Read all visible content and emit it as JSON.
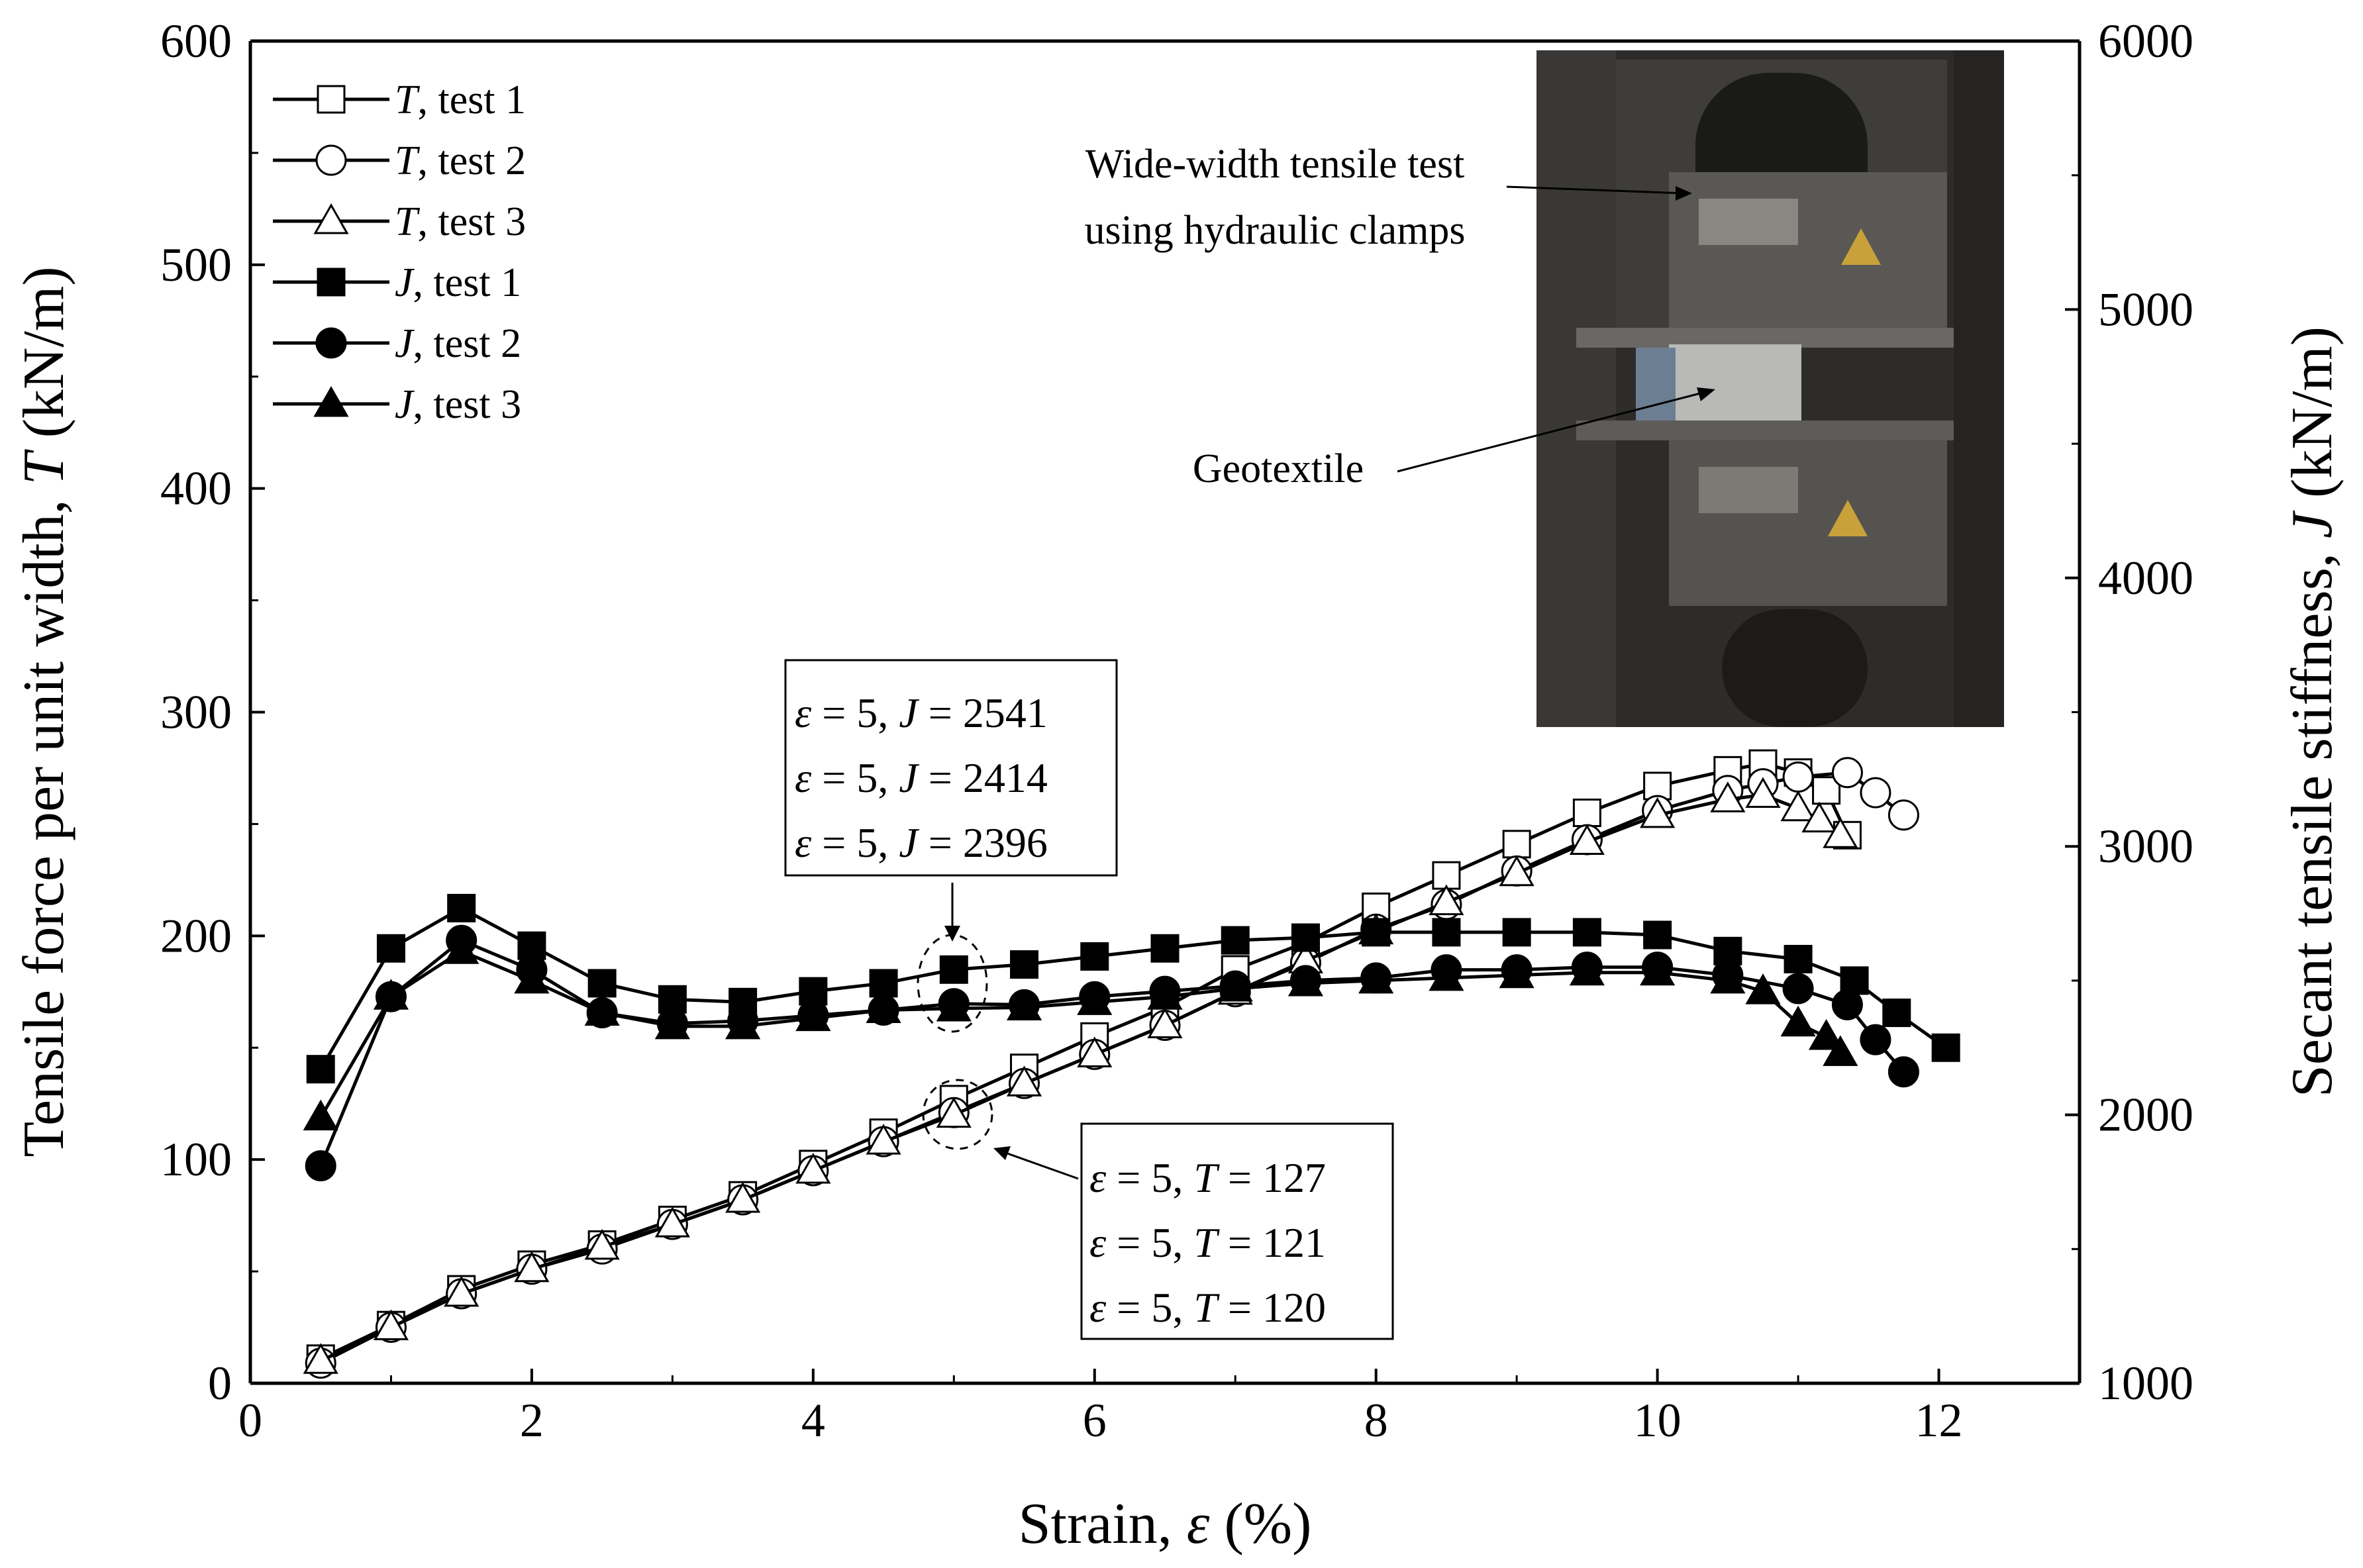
{
  "chart_data": {
    "type": "line",
    "xlabel": "Strain, ε (%)",
    "ylabel_left": "Tensile force per unit width, T (kN/m)",
    "ylabel_right": "Secant tensile stiffness, J (kN/m)",
    "xlim": [
      0,
      13
    ],
    "ylim_left": [
      0,
      600
    ],
    "ylim_right": [
      1000,
      6000
    ],
    "x_ticks": [
      0,
      2,
      4,
      6,
      8,
      10,
      12
    ],
    "y_left_ticks": [
      0,
      100,
      200,
      300,
      400,
      500,
      600
    ],
    "y_right_ticks": [
      1000,
      2000,
      3000,
      4000,
      5000,
      6000
    ],
    "grid": false,
    "legend_position": "top-left",
    "series": [
      {
        "name": "T, test 1",
        "legend_symbol": "T",
        "legend_rest": ",  test 1",
        "axis": "left",
        "marker": "square",
        "filled": false,
        "points": [
          [
            0.5,
            11
          ],
          [
            1,
            26
          ],
          [
            1.5,
            42
          ],
          [
            2,
            53
          ],
          [
            2.5,
            62
          ],
          [
            3,
            73
          ],
          [
            3.5,
            84
          ],
          [
            4,
            98
          ],
          [
            4.5,
            112
          ],
          [
            5,
            127
          ],
          [
            5.5,
            141
          ],
          [
            6,
            155
          ],
          [
            6.5,
            168
          ],
          [
            7,
            185
          ],
          [
            7.5,
            197
          ],
          [
            8,
            213
          ],
          [
            8.5,
            227
          ],
          [
            9,
            241
          ],
          [
            9.5,
            255
          ],
          [
            10,
            267
          ],
          [
            10.5,
            274
          ],
          [
            10.75,
            277
          ],
          [
            11,
            273
          ],
          [
            11.2,
            265
          ],
          [
            11.35,
            245
          ]
        ]
      },
      {
        "name": "T, test 2",
        "legend_symbol": "T",
        "legend_rest": ",  test 2",
        "axis": "left",
        "marker": "circle",
        "filled": false,
        "points": [
          [
            0.5,
            9
          ],
          [
            1,
            25
          ],
          [
            1.5,
            40
          ],
          [
            2,
            51
          ],
          [
            2.5,
            60
          ],
          [
            3,
            71
          ],
          [
            3.5,
            82
          ],
          [
            4,
            95
          ],
          [
            4.5,
            108
          ],
          [
            5,
            121
          ],
          [
            5.5,
            134
          ],
          [
            6,
            147
          ],
          [
            6.5,
            160
          ],
          [
            7,
            175
          ],
          [
            7.5,
            188
          ],
          [
            8,
            203
          ],
          [
            8.5,
            214
          ],
          [
            9,
            229
          ],
          [
            9.5,
            243
          ],
          [
            10,
            256
          ],
          [
            10.5,
            265
          ],
          [
            10.75,
            268
          ],
          [
            11,
            271
          ],
          [
            11.35,
            273
          ],
          [
            11.55,
            264
          ],
          [
            11.75,
            254
          ]
        ]
      },
      {
        "name": "T, test 3",
        "legend_symbol": "T",
        "legend_rest": ",  test 3",
        "axis": "left",
        "marker": "triangle",
        "filled": false,
        "points": [
          [
            0.5,
            10
          ],
          [
            1,
            25
          ],
          [
            1.5,
            40
          ],
          [
            2,
            51
          ],
          [
            2.5,
            61
          ],
          [
            3,
            71
          ],
          [
            3.5,
            82
          ],
          [
            4,
            95
          ],
          [
            4.5,
            108
          ],
          [
            5,
            120
          ],
          [
            5.5,
            134
          ],
          [
            6,
            147
          ],
          [
            6.5,
            160
          ],
          [
            7,
            175
          ],
          [
            7.5,
            189
          ],
          [
            8,
            202
          ],
          [
            8.5,
            215
          ],
          [
            9,
            228
          ],
          [
            9.5,
            242
          ],
          [
            10,
            254
          ],
          [
            10.5,
            261
          ],
          [
            10.75,
            263
          ],
          [
            11,
            257
          ],
          [
            11.15,
            252
          ],
          [
            11.3,
            245
          ]
        ]
      },
      {
        "name": "J, test 1",
        "legend_symbol": "J",
        "legend_rest": ", test 1",
        "axis": "right",
        "marker": "square",
        "filled": true,
        "points": [
          [
            0.5,
            2170
          ],
          [
            1,
            2620
          ],
          [
            1.5,
            2770
          ],
          [
            2,
            2630
          ],
          [
            2.5,
            2490
          ],
          [
            3,
            2430
          ],
          [
            3.5,
            2420
          ],
          [
            4,
            2460
          ],
          [
            4.5,
            2490
          ],
          [
            5,
            2541
          ],
          [
            5.5,
            2560
          ],
          [
            6,
            2590
          ],
          [
            6.5,
            2620
          ],
          [
            7,
            2650
          ],
          [
            7.5,
            2660
          ],
          [
            8,
            2680
          ],
          [
            8.5,
            2680
          ],
          [
            9,
            2680
          ],
          [
            9.5,
            2680
          ],
          [
            10,
            2670
          ],
          [
            10.5,
            2610
          ],
          [
            11,
            2580
          ],
          [
            11.4,
            2500
          ],
          [
            11.7,
            2380
          ],
          [
            12.05,
            2250
          ]
        ]
      },
      {
        "name": "J, test 2",
        "legend_symbol": "J",
        "legend_rest": ", test 2",
        "axis": "right",
        "marker": "circle",
        "filled": true,
        "points": [
          [
            0.5,
            1810
          ],
          [
            1,
            2440
          ],
          [
            1.5,
            2650
          ],
          [
            2,
            2540
          ],
          [
            2.5,
            2380
          ],
          [
            3,
            2340
          ],
          [
            3.5,
            2350
          ],
          [
            4,
            2370
          ],
          [
            4.5,
            2390
          ],
          [
            5,
            2414
          ],
          [
            5.5,
            2410
          ],
          [
            6,
            2440
          ],
          [
            6.5,
            2460
          ],
          [
            7,
            2480
          ],
          [
            7.5,
            2500
          ],
          [
            8,
            2510
          ],
          [
            8.5,
            2540
          ],
          [
            9,
            2540
          ],
          [
            9.5,
            2550
          ],
          [
            10,
            2550
          ],
          [
            10.5,
            2520
          ],
          [
            11,
            2470
          ],
          [
            11.35,
            2410
          ],
          [
            11.55,
            2280
          ],
          [
            11.75,
            2160
          ]
        ]
      },
      {
        "name": "J, test 3",
        "legend_symbol": "J",
        "legend_rest": ", test 3",
        "axis": "right",
        "marker": "triangle",
        "filled": true,
        "points": [
          [
            0.5,
            1990
          ],
          [
            1,
            2440
          ],
          [
            1.5,
            2610
          ],
          [
            2,
            2500
          ],
          [
            2.5,
            2380
          ],
          [
            3,
            2330
          ],
          [
            3.5,
            2330
          ],
          [
            4,
            2360
          ],
          [
            4.5,
            2390
          ],
          [
            5,
            2396
          ],
          [
            5.5,
            2400
          ],
          [
            6,
            2420
          ],
          [
            6.5,
            2440
          ],
          [
            7,
            2470
          ],
          [
            7.5,
            2490
          ],
          [
            8,
            2500
          ],
          [
            8.5,
            2510
          ],
          [
            9,
            2520
          ],
          [
            9.5,
            2530
          ],
          [
            10,
            2530
          ],
          [
            10.5,
            2500
          ],
          [
            10.75,
            2460
          ],
          [
            11,
            2340
          ],
          [
            11.2,
            2290
          ],
          [
            11.3,
            2230
          ]
        ]
      }
    ],
    "annotations": {
      "upper_box": [
        {
          "eps": "ε",
          "eq": " = 5, ",
          "var": "J",
          "val": " = 2541"
        },
        {
          "eps": "ε",
          "eq": " = 5, ",
          "var": "J",
          "val": " = 2414"
        },
        {
          "eps": "ε",
          "eq": " = 5, ",
          "var": "J",
          "val": " = 2396"
        }
      ],
      "lower_box": [
        {
          "eps": "ε",
          "eq": " = 5, ",
          "var": "T",
          "val": " = 127"
        },
        {
          "eps": "ε",
          "eq": " = 5, ",
          "var": "T",
          "val": " = 121"
        },
        {
          "eps": "ε",
          "eq": " = 5, ",
          "var": "T",
          "val": " = 120"
        }
      ]
    },
    "inset": {
      "caption_line1": "Wide-width tensile test",
      "caption_line2": "using hydraulic clamps",
      "geotextile_label": "Geotextile"
    }
  }
}
